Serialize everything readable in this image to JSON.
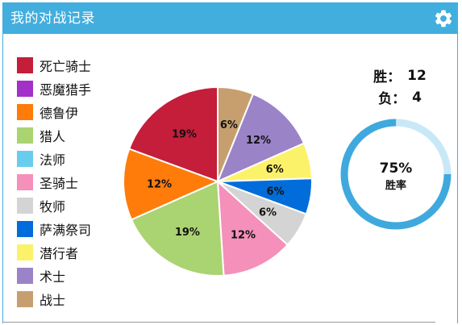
{
  "header": {
    "title": "我的对战记录",
    "settings_icon": "gear-icon"
  },
  "chart_data": {
    "type": "pie",
    "legend_placement": "left",
    "slices": [
      {
        "label": "战士",
        "value": 6,
        "label_text": "6%",
        "color": "#c79f6f"
      },
      {
        "label": "术士",
        "value": 12,
        "label_text": "12%",
        "color": "#9b83c8"
      },
      {
        "label": "潜行者",
        "value": 6,
        "label_text": "6%",
        "color": "#fcf26a"
      },
      {
        "label": "萨满祭司",
        "value": 6,
        "label_text": "6%",
        "color": "#006ddb"
      },
      {
        "label": "牧师",
        "value": 6,
        "label_text": "6%",
        "color": "#d4d4d4"
      },
      {
        "label": "圣骑士",
        "value": 12,
        "label_text": "12%",
        "color": "#f490ba"
      },
      {
        "label": "猎人",
        "value": 19,
        "label_text": "19%",
        "color": "#aad372"
      },
      {
        "label": "德鲁伊",
        "value": 12,
        "label_text": "12%",
        "color": "#ff7c0a"
      },
      {
        "label": "死亡骑士",
        "value": 19,
        "label_text": "19%",
        "color": "#c41e3a"
      }
    ],
    "legend": [
      {
        "label": "死亡骑士",
        "color": "#c41e3a"
      },
      {
        "label": "恶魔猎手",
        "color": "#a330c9"
      },
      {
        "label": "德鲁伊",
        "color": "#ff7c0a"
      },
      {
        "label": "猎人",
        "color": "#aad372"
      },
      {
        "label": "法师",
        "color": "#68ccef"
      },
      {
        "label": "圣骑士",
        "color": "#f490ba"
      },
      {
        "label": "牧师",
        "color": "#d4d4d4"
      },
      {
        "label": "萨满祭司",
        "color": "#006ddb"
      },
      {
        "label": "潜行者",
        "color": "#fcf26a"
      },
      {
        "label": "术士",
        "color": "#9b83c8"
      },
      {
        "label": "战士",
        "color": "#c79f6f"
      }
    ]
  },
  "stats": {
    "wins_label": "胜：",
    "wins": "12",
    "losses_label": "负：",
    "losses": "4",
    "win_rate": 0.75,
    "win_rate_text": "75%",
    "win_rate_label": "胜率",
    "ring_color": "#3fa9dd",
    "ring_track_color": "#c9e8f7"
  }
}
